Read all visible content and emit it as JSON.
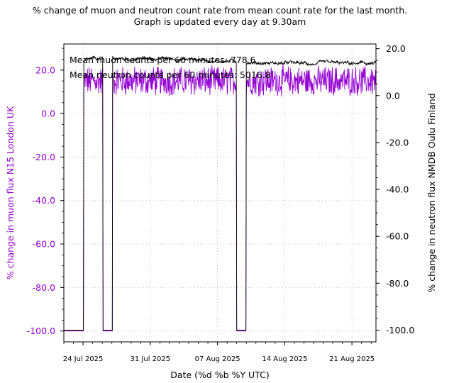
{
  "chart_data": {
    "type": "line",
    "title_line1": "% change of muon and neutron count rate from mean count rate for the last month.",
    "title_line2": "Graph is updated every day at 9.30am",
    "xlabel": "Date (%d %b %Y UTC)",
    "ylabel_left": "% change in muon flux N15 London UK",
    "ylabel_right": "% change in neutron flux NMDB Oulu Finland",
    "ylim_left": [
      -105,
      32
    ],
    "ylim_right": [
      -105,
      22
    ],
    "x_range": [
      "2025-07-22T00:00",
      "2025-08-23T12:00"
    ],
    "x_ticks": [
      {
        "date": "2025-07-24",
        "label": "24 Jul 2025"
      },
      {
        "date": "2025-07-31",
        "label": "31 Jul 2025"
      },
      {
        "date": "2025-08-07",
        "label": "07 Aug 2025"
      },
      {
        "date": "2025-08-14",
        "label": "14 Aug 2025"
      },
      {
        "date": "2025-08-21",
        "label": "21 Aug 2025"
      }
    ],
    "y_ticks_left": [
      "20.0",
      "0.0",
      "-20.0",
      "-40.0",
      "-60.0",
      "-80.0",
      "-100.0"
    ],
    "y_ticks_right": [
      "20.0",
      "0.0",
      "-20.0",
      "-40.0",
      "-60.0",
      "-80.0",
      "-100.0"
    ],
    "grid": true,
    "annotations": [
      "Mean muon counts per 60 minutes: 778.6",
      "Mean neutron counts per 60 minutes: 5016.8"
    ],
    "gap_intervals": [
      {
        "start": "2025-07-22T00:00",
        "end": "2025-07-24T02:00",
        "value": -100
      },
      {
        "start": "2025-07-26T02:00",
        "end": "2025-07-27T02:00",
        "value": -100
      },
      {
        "start": "2025-08-09T00:00",
        "end": "2025-08-10T00:00",
        "value": -100
      }
    ],
    "series": [
      {
        "axis": "left",
        "color": "#9400d3",
        "baseline": 15,
        "noise_amplitude": 6,
        "min": 4,
        "max": 26
      },
      {
        "axis": "right",
        "color": "#000000",
        "baseline": 14.5,
        "noise_amplitude": 1,
        "min": 13,
        "max": 17.5
      }
    ],
    "colors": {
      "muon": "#9400d3",
      "neutron": "#000000",
      "grid": "#b0b0b0"
    }
  }
}
